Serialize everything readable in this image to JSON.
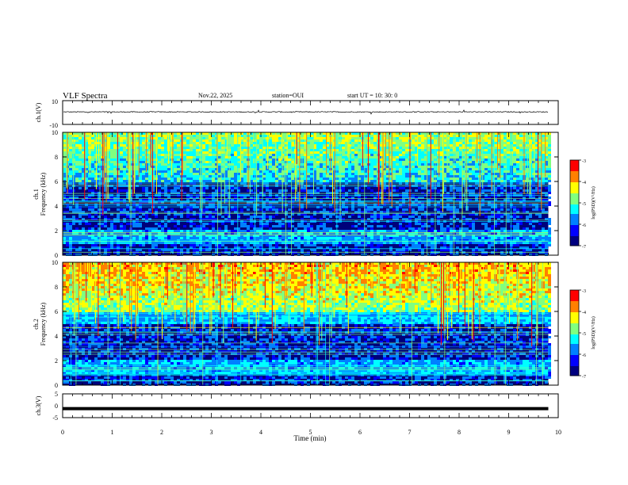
{
  "header": {
    "title": "VLF Spectra",
    "date": "Nov.22, 2025",
    "station": "station=OUI",
    "start": "start  UT =   10: 30: 0"
  },
  "chart_data": [
    {
      "type": "line",
      "name": "ch1-waveform",
      "ylabel": "ch.1(V)",
      "ylim": [
        -10,
        10
      ],
      "yticks": [
        "10",
        "-10"
      ],
      "baseline": 0.5,
      "noise_amplitude": 0.8
    },
    {
      "type": "heatmap",
      "name": "ch1-spectrogram",
      "ylabel_line1": "ch.1",
      "ylabel_line2": "Frequency (kHz)",
      "ylim": [
        0,
        10
      ],
      "yticks": [
        "0",
        "2",
        "4",
        "6",
        "8",
        "10"
      ],
      "quiet_band_khz": [
        0,
        6
      ],
      "active_band_khz": [
        6,
        10
      ],
      "colorbar": {
        "label": "log(PSD)(V²/Hz)",
        "range": [
          -7,
          -3
        ],
        "ticks": [
          "-3",
          "-4",
          "-5",
          "-6",
          "-7"
        ]
      }
    },
    {
      "type": "heatmap",
      "name": "ch2-spectrogram",
      "ylabel_line1": "ch.2",
      "ylabel_line2": "Frequency (kHz)",
      "ylim": [
        0,
        10
      ],
      "yticks": [
        "0",
        "2",
        "4",
        "6",
        "8",
        "10"
      ],
      "quiet_band_khz": [
        0,
        5
      ],
      "active_band_khz": [
        6,
        10
      ],
      "colorbar": {
        "label": "log(PSD)(V²/Hz)",
        "range": [
          -7,
          -3
        ],
        "ticks": [
          "-3",
          "-4",
          "-5",
          "-6",
          "-7"
        ]
      }
    },
    {
      "type": "line",
      "name": "ch3-waveform",
      "ylabel": "ch.3(V)",
      "ylim": [
        -5,
        5
      ],
      "yticks": [
        "5",
        "0",
        "-5"
      ],
      "baseline": -1.2
    }
  ],
  "xaxis": {
    "label": "Time (min)",
    "range": [
      0,
      10
    ],
    "ticks": [
      "0",
      "1",
      "2",
      "3",
      "4",
      "5",
      "6",
      "7",
      "8",
      "9",
      "10"
    ],
    "data_end": 9.8
  },
  "colors": {
    "colormap": [
      "#000080",
      "#0000ff",
      "#0080ff",
      "#00ffff",
      "#80ff80",
      "#ffff00",
      "#ff8000",
      "#ff0000",
      "#800000"
    ]
  }
}
